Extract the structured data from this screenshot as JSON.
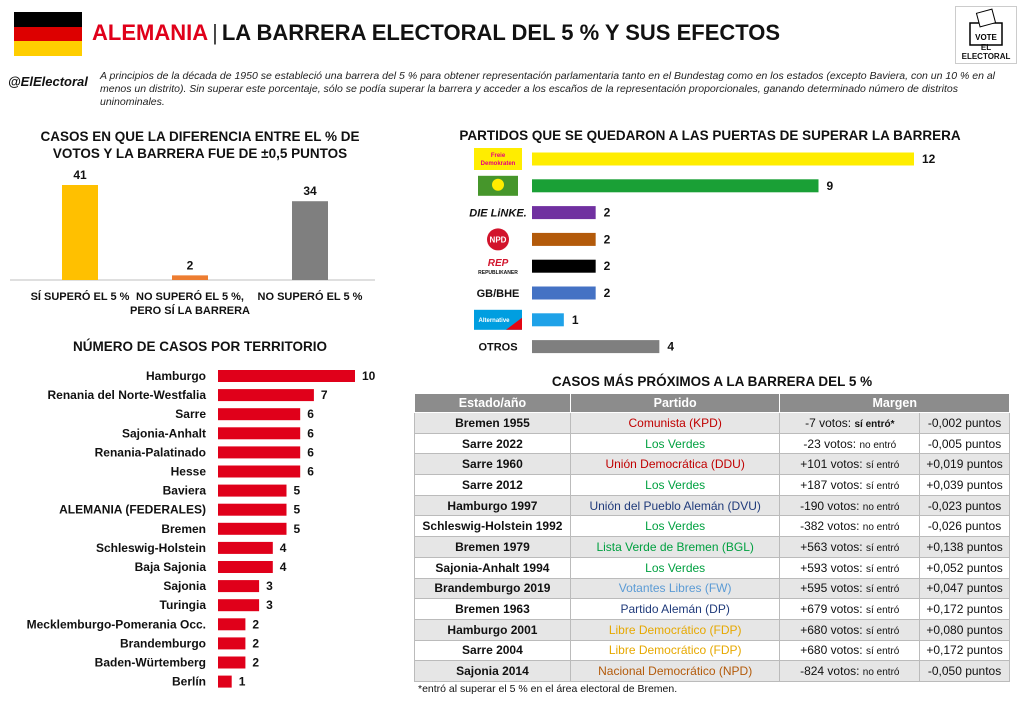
{
  "header": {
    "country": "ALEMANIA",
    "separator": "|",
    "title": "LA BARRERA ELECTORAL DEL 5 % Y SUS EFECTOS",
    "handle": "@ElElectoral",
    "logo_vote": "VOTE",
    "logo_brand": "EL ELECTORAL",
    "flag_colors": [
      "#000000",
      "#dd0000",
      "#ffce00"
    ],
    "intro": "A principios de la década de 1950 se estableció una barrera del 5 % para obtener representación parlamentaria tanto en el Bundestag como en los estados (excepto Baviera, con un 10 % en al menos un distrito). Sin superar este porcentaje, sólo se podía superar la barrera y acceder a los escaños de la representación proporcionales, ganando determinado número de distritos uninominales."
  },
  "sections": {
    "cases_title_1": "CASOS EN QUE LA DIFERENCIA ENTRE EL % DE",
    "cases_title_2": "VOTOS Y LA BARRERA FUE DE ±0,5 PUNTOS",
    "parties_title": "PARTIDOS QUE SE QUEDARON A LAS PUERTAS DE SUPERAR LA BARRERA",
    "territory_title": "NÚMERO DE CASOS POR TERRITORIO",
    "closest_title": "CASOS MÁS PRÓXIMOS A LA BARRERA DEL 5 %"
  },
  "chart_data": [
    {
      "type": "bar",
      "title": "CASOS EN QUE LA DIFERENCIA ENTRE EL % DE VOTOS Y LA BARRERA FUE DE ±0,5 PUNTOS",
      "categories": [
        [
          "SÍ SUPERÓ EL 5 %"
        ],
        [
          "NO SUPERÓ EL 5 %,",
          "PERO SÍ LA BARRERA"
        ],
        [
          "NO SUPERÓ EL 5 %"
        ]
      ],
      "values": [
        41,
        2,
        34
      ],
      "colors": [
        "#ffc000",
        "#ed7d31",
        "#7f7f7f"
      ],
      "ylim": [
        0,
        41
      ]
    },
    {
      "type": "bar",
      "orientation": "horizontal",
      "title": "PARTIDOS QUE SE QUEDARON A LAS PUERTAS DE SUPERAR LA BARRERA",
      "categories": [
        "Freie Demokraten FDP",
        "Bündnis 90 / Die Grünen",
        "DIE LINKE.",
        "NPD",
        "REP Die Republikaner",
        "GB/BHE",
        "Alternative für Deutschland",
        "OTROS"
      ],
      "category_labels": [
        "",
        "",
        "DIE LiNKE.",
        "",
        "",
        "GB/BHE",
        "",
        "OTROS"
      ],
      "logo_text": [
        "Freie Demokraten FDP",
        "BÜNDNIS 90 DIE GRÜNEN",
        "",
        "NPD",
        "REP DIE REPUBLIKANER",
        "",
        "Alternative für Deutschland",
        ""
      ],
      "values": [
        12,
        9,
        2,
        2,
        2,
        2,
        1,
        4
      ],
      "colors": [
        "#ffed00",
        "#1aa036",
        "#7030a0",
        "#b35a0a",
        "#000000",
        "#4472c4",
        "#1fa2e8",
        "#7f7f7f"
      ],
      "xlim": [
        0,
        12
      ]
    },
    {
      "type": "bar",
      "orientation": "horizontal",
      "title": "NÚMERO DE CASOS POR TERRITORIO",
      "categories": [
        "Hamburgo",
        "Renania del Norte-Westfalia",
        "Sarre",
        "Sajonia-Anhalt",
        "Renania-Palatinado",
        "Hesse",
        "Baviera",
        "ALEMANIA (FEDERALES)",
        "Bremen",
        "Schleswig-Holstein",
        "Baja Sajonia",
        "Sajonia",
        "Turingia",
        "Mecklemburgo-Pomerania Occ.",
        "Brandemburgo",
        "Baden-Würtemberg",
        "Berlín"
      ],
      "values": [
        10,
        7,
        6,
        6,
        6,
        6,
        5,
        5,
        5,
        4,
        4,
        3,
        3,
        2,
        2,
        2,
        1
      ],
      "color": "#e0001a",
      "xlim": [
        0,
        10
      ]
    },
    {
      "type": "table",
      "title": "CASOS MÁS PRÓXIMOS A LA BARRERA DEL 5 %",
      "headers": [
        "Estado/año",
        "Partido",
        "Margen"
      ],
      "rows": [
        {
          "estado": "Bremen 1955",
          "partido": "Comunista (KPD)",
          "pcolor": "#c00000",
          "votos": "-7 votos: ",
          "res": "sí entró*",
          "puntos": "-0,002 puntos"
        },
        {
          "estado": "Sarre 2022",
          "partido": "Los Verdes",
          "pcolor": "#00a040",
          "votos": "-23 votos: ",
          "res": "no entró",
          "puntos": "-0,005 puntos"
        },
        {
          "estado": "Sarre 1960",
          "partido": "Unión Democrática (DDU)",
          "pcolor": "#c00000",
          "votos": "+101 votos: ",
          "res": "sí entró",
          "puntos": "+0,019 puntos"
        },
        {
          "estado": "Sarre 2012",
          "partido": "Los Verdes",
          "pcolor": "#00a040",
          "votos": "+187 votos: ",
          "res": "sí entró",
          "puntos": "+0,039 puntos"
        },
        {
          "estado": "Hamburgo 1997",
          "partido": "Unión del Pueblo Alemán (DVU)",
          "pcolor": "#1f3a7a",
          "votos": "-190 votos: ",
          "res": "no entró",
          "puntos": "-0,023 puntos"
        },
        {
          "estado": "Schleswig-Holstein 1992",
          "partido": "Los Verdes",
          "pcolor": "#00a040",
          "votos": "-382 votos: ",
          "res": "no entró",
          "puntos": "-0,026 puntos"
        },
        {
          "estado": "Bremen 1979",
          "partido": "Lista Verde de Bremen (BGL)",
          "pcolor": "#00a040",
          "votos": "+563 votos: ",
          "res": "sí entró",
          "puntos": "+0,138 puntos"
        },
        {
          "estado": "Sajonia-Anhalt 1994",
          "partido": "Los Verdes",
          "pcolor": "#00a040",
          "votos": "+593 votos: ",
          "res": "sí entró",
          "puntos": "+0,052 puntos"
        },
        {
          "estado": "Brandemburgo 2019",
          "partido": "Votantes Libres (FW)",
          "pcolor": "#5b9bd5",
          "votos": "+595 votos: ",
          "res": "sí entró",
          "puntos": "+0,047 puntos"
        },
        {
          "estado": "Bremen 1963",
          "partido": "Partido Alemán (DP)",
          "pcolor": "#1f3a7a",
          "votos": "+679 votos: ",
          "res": "sí entró",
          "puntos": "+0,172 puntos"
        },
        {
          "estado": "Hamburgo 2001",
          "partido": "Libre Democrático (FDP)",
          "pcolor": "#e6a800",
          "votos": "+680 votos: ",
          "res": "sí entró",
          "puntos": "+0,080 puntos"
        },
        {
          "estado": "Sarre 2004",
          "partido": "Libre Democrático (FDP)",
          "pcolor": "#e6a800",
          "votos": "+680 votos: ",
          "res": "sí entró",
          "puntos": "+0,172 puntos"
        },
        {
          "estado": "Sajonia 2014",
          "partido": "Nacional Democrático (NPD)",
          "pcolor": "#b35a0a",
          "votos": "-824 votos: ",
          "res": "no entró",
          "puntos": "-0,050 puntos"
        }
      ]
    }
  ],
  "footnote": "*entró al superar el 5 % en el área electoral de Bremen."
}
